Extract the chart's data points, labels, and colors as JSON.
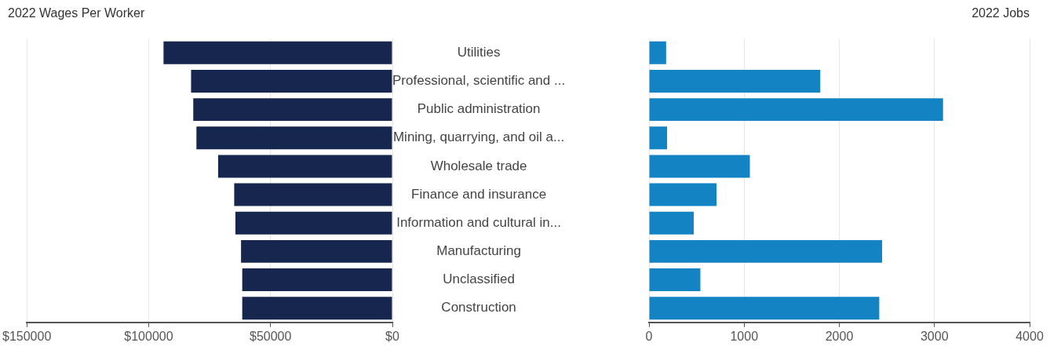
{
  "chart_data": [
    {
      "type": "bar",
      "orientation": "horizontal",
      "title": "2022 Wages Per Worker",
      "categories": [
        "Utilities",
        "Professional, scientific and ...",
        "Public administration",
        "Mining, quarrying, and oil a...",
        "Wholesale trade",
        "Finance and insurance",
        "Information and cultural in...",
        "Manufacturing",
        "Unclassified",
        "Construction"
      ],
      "values": [
        93900,
        82600,
        81700,
        80400,
        71500,
        64900,
        64400,
        62100,
        61600,
        61600
      ],
      "color": "#16264f",
      "xlim": [
        150000,
        0
      ],
      "xticks": [
        {
          "value": 150000,
          "label": "$150000"
        },
        {
          "value": 100000,
          "label": "$100000"
        },
        {
          "value": 50000,
          "label": "$50000"
        },
        {
          "value": 0,
          "label": "$0"
        }
      ],
      "grid": "x"
    },
    {
      "type": "bar",
      "orientation": "horizontal",
      "title": "2022 Jobs",
      "categories": [
        null,
        null,
        null,
        null,
        null,
        null,
        null,
        null,
        null,
        null
      ],
      "values": [
        180,
        1800,
        3090,
        190,
        1060,
        710,
        470,
        2450,
        540,
        2420
      ],
      "color": "#1383c4",
      "xlim": [
        0,
        4000
      ],
      "xticks": [
        0,
        1000,
        2000,
        3000,
        4000
      ],
      "grid": "x",
      "tick_labels": "x"
    }
  ]
}
